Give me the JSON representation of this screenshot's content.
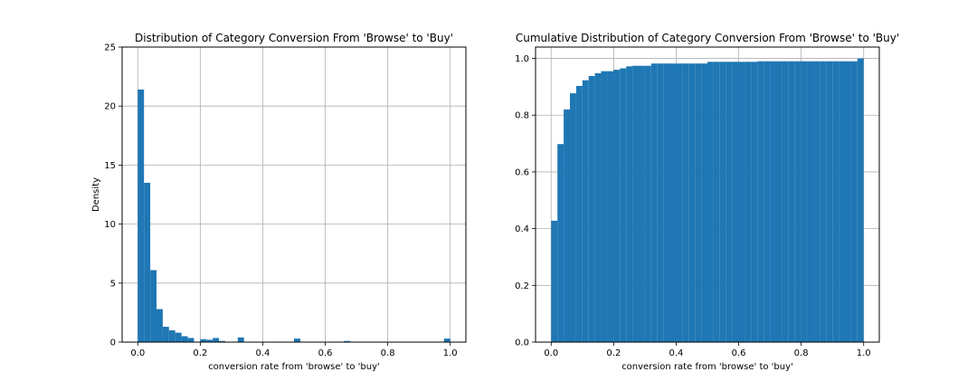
{
  "chart_data": [
    {
      "type": "bar",
      "title": "Distribution of Category Conversion From 'Browse' to 'Buy'",
      "xlabel": "conversion rate from 'browse' to 'buy'",
      "ylabel": "Density",
      "xlim": [
        -0.05,
        1.05
      ],
      "ylim": [
        0,
        25
      ],
      "xticks": [
        "0.0",
        "0.2",
        "0.4",
        "0.6",
        "0.8",
        "1.0"
      ],
      "yticks": [
        "0",
        "5",
        "10",
        "15",
        "20",
        "25"
      ],
      "grid": true,
      "bar_color": "#1f77b4",
      "bin_width": 0.02,
      "bin_start": 0.0,
      "values": [
        21.4,
        13.5,
        6.1,
        2.8,
        1.3,
        1.0,
        0.8,
        0.5,
        0.35,
        0.0,
        0.25,
        0.2,
        0.35,
        0.1,
        0.0,
        0.0,
        0.4,
        0.0,
        0.0,
        0.0,
        0.0,
        0.0,
        0.0,
        0.0,
        0.0,
        0.3,
        0.0,
        0.0,
        0.0,
        0.0,
        0.0,
        0.0,
        0.0,
        0.1,
        0.0,
        0.0,
        0.0,
        0.0,
        0.0,
        0.0,
        0.0,
        0.0,
        0.0,
        0.0,
        0.0,
        0.0,
        0.0,
        0.0,
        0.0,
        0.3
      ]
    },
    {
      "type": "bar",
      "title": "Cumulative Distribution of Category Conversion From 'Browse' to 'Buy'",
      "xlabel": "conversion rate from 'browse' to 'buy'",
      "ylabel": "",
      "xlim": [
        -0.05,
        1.05
      ],
      "ylim": [
        0,
        1.04
      ],
      "xticks": [
        "0.0",
        "0.2",
        "0.4",
        "0.6",
        "0.8",
        "1.0"
      ],
      "yticks": [
        "0.0",
        "0.2",
        "0.4",
        "0.6",
        "0.8",
        "1.0"
      ],
      "grid": true,
      "bar_color": "#1f77b4",
      "bin_width": 0.02,
      "bin_start": 0.0,
      "values": [
        0.428,
        0.698,
        0.82,
        0.877,
        0.903,
        0.923,
        0.938,
        0.948,
        0.955,
        0.955,
        0.96,
        0.965,
        0.972,
        0.974,
        0.974,
        0.974,
        0.982,
        0.982,
        0.982,
        0.982,
        0.982,
        0.982,
        0.982,
        0.982,
        0.982,
        0.988,
        0.988,
        0.988,
        0.988,
        0.988,
        0.988,
        0.988,
        0.988,
        0.99,
        0.99,
        0.99,
        0.99,
        0.99,
        0.99,
        0.99,
        0.99,
        0.99,
        0.99,
        0.99,
        0.99,
        0.99,
        0.99,
        0.99,
        0.99,
        1.0
      ]
    }
  ]
}
